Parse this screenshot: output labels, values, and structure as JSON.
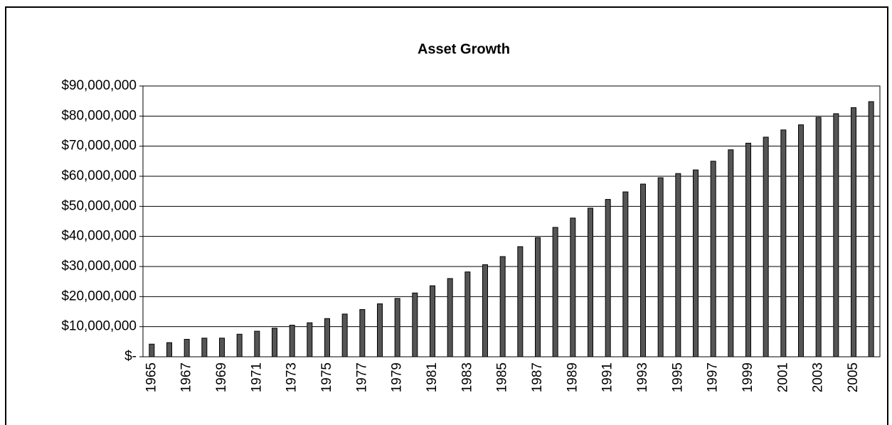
{
  "chart_data": {
    "type": "bar",
    "title": "Asset Growth",
    "categories": [
      "1965",
      null,
      "1967",
      null,
      "1969",
      null,
      "1971",
      null,
      "1973",
      null,
      "1975",
      null,
      "1977",
      null,
      "1979",
      null,
      "1981",
      null,
      "1983",
      null,
      "1985",
      null,
      "1987",
      null,
      "1989",
      null,
      "1991",
      null,
      "1993",
      null,
      "1995",
      null,
      "1997",
      null,
      "1999",
      null,
      "2001",
      null,
      "2003",
      null,
      "2005",
      null
    ],
    "values": [
      4200000,
      4700000,
      5800000,
      6200000,
      6200000,
      7500000,
      8500000,
      9500000,
      10500000,
      11300000,
      12700000,
      14200000,
      15700000,
      17600000,
      19400000,
      21200000,
      23600000,
      26000000,
      28200000,
      30600000,
      33300000,
      36600000,
      39600000,
      43000000,
      46100000,
      49400000,
      52300000,
      54800000,
      57400000,
      59500000,
      60900000,
      62100000,
      65000000,
      68800000,
      71000000,
      73000000,
      75400000,
      77100000,
      79600000,
      80800000,
      82800000,
      84800000
    ],
    "color": "#555555",
    "ylim": [
      0,
      90000000
    ],
    "yticks": [
      {
        "value": 0,
        "label": "$-"
      },
      {
        "value": 10000000,
        "label": "$10,000,000"
      },
      {
        "value": 20000000,
        "label": "$20,000,000"
      },
      {
        "value": 30000000,
        "label": "$30,000,000"
      },
      {
        "value": 40000000,
        "label": "$40,000,000"
      },
      {
        "value": 50000000,
        "label": "$50,000,000"
      },
      {
        "value": 60000000,
        "label": "$60,000,000"
      },
      {
        "value": 70000000,
        "label": "$70,000,000"
      },
      {
        "value": 80000000,
        "label": "$80,000,000"
      },
      {
        "value": 90000000,
        "label": "$90,000,000"
      }
    ],
    "grid": true
  }
}
